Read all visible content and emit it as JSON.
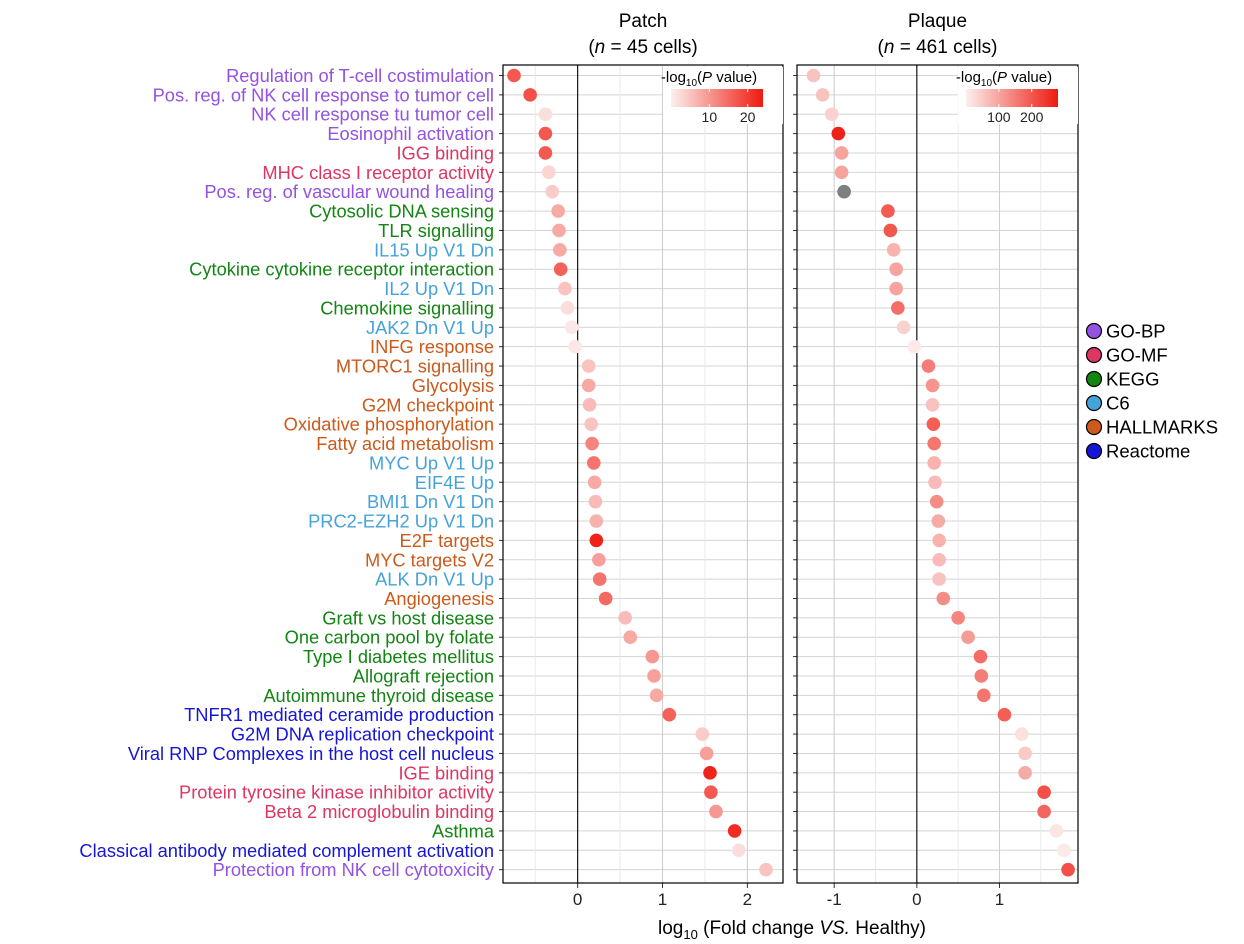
{
  "chart_data": {
    "type": "scatter",
    "xlabel": {
      "pre": "log",
      "sub": "10",
      "mid": " (Fold change ",
      "italic": "VS.",
      "post": " Healthy)"
    },
    "colorbar_title": {
      "pre": "-log",
      "sub": "10",
      "mid": "(",
      "italic": "P",
      "post": " value)"
    },
    "na_color": "#7f7f7f",
    "color_low": "#fbf0ee",
    "color_high": "#ef1a10",
    "categories": [
      {
        "name": "GO-BP",
        "color": "#9352e0"
      },
      {
        "name": "GO-MF",
        "color": "#de3561"
      },
      {
        "name": "KEGG",
        "color": "#138513"
      },
      {
        "name": "C6",
        "color": "#45a3d9"
      },
      {
        "name": "HALLMARKS",
        "color": "#cb5a1b"
      },
      {
        "name": "Reactome",
        "color": "#1616d6"
      }
    ],
    "pathways": [
      {
        "label": "Regulation of T-cell costimulation",
        "category": "GO-BP"
      },
      {
        "label": "Pos. reg. of NK cell response to tumor cell",
        "category": "GO-BP"
      },
      {
        "label": "NK cell response tu tumor cell",
        "category": "GO-BP"
      },
      {
        "label": "Eosinophil activation",
        "category": "GO-BP"
      },
      {
        "label": "IGG binding",
        "category": "GO-MF"
      },
      {
        "label": "MHC class I receptor activity",
        "category": "GO-MF"
      },
      {
        "label": "Pos. reg. of vascular wound healing",
        "category": "GO-BP"
      },
      {
        "label": "Cytosolic DNA sensing",
        "category": "KEGG"
      },
      {
        "label": "TLR signalling",
        "category": "KEGG"
      },
      {
        "label": "IL15 Up V1 Dn",
        "category": "C6"
      },
      {
        "label": "Cytokine cytokine receptor interaction",
        "category": "KEGG"
      },
      {
        "label": "IL2 Up V1 Dn",
        "category": "C6"
      },
      {
        "label": "Chemokine signalling",
        "category": "KEGG"
      },
      {
        "label": "JAK2 Dn V1 Up",
        "category": "C6"
      },
      {
        "label": "INFG response",
        "category": "HALLMARKS"
      },
      {
        "label": "MTORC1 signalling",
        "category": "HALLMARKS"
      },
      {
        "label": "Glycolysis",
        "category": "HALLMARKS"
      },
      {
        "label": "G2M checkpoint",
        "category": "HALLMARKS"
      },
      {
        "label": "Oxidative phosphorylation",
        "category": "HALLMARKS"
      },
      {
        "label": "Fatty acid metabolism",
        "category": "HALLMARKS"
      },
      {
        "label": "MYC Up V1 Up",
        "category": "C6"
      },
      {
        "label": "EIF4E Up",
        "category": "C6"
      },
      {
        "label": "BMI1 Dn V1 Dn",
        "category": "C6"
      },
      {
        "label": "PRC2-EZH2 Up V1 Dn",
        "category": "C6"
      },
      {
        "label": "E2F targets",
        "category": "HALLMARKS"
      },
      {
        "label": "MYC targets V2",
        "category": "HALLMARKS"
      },
      {
        "label": "ALK Dn V1 Up",
        "category": "C6"
      },
      {
        "label": "Angiogenesis",
        "category": "HALLMARKS"
      },
      {
        "label": "Graft vs host disease",
        "category": "KEGG"
      },
      {
        "label": "One carbon pool by folate",
        "category": "KEGG"
      },
      {
        "label": "Type I diabetes mellitus",
        "category": "KEGG"
      },
      {
        "label": "Allograft rejection",
        "category": "KEGG"
      },
      {
        "label": "Autoimmune thyroid disease",
        "category": "KEGG"
      },
      {
        "label": "TNFR1 mediated ceramide production",
        "category": "Reactome"
      },
      {
        "label": "G2M DNA replication checkpoint",
        "category": "Reactome"
      },
      {
        "label": "Viral RNP Complexes in the host cell nucleus",
        "category": "Reactome"
      },
      {
        "label": "IGE binding",
        "category": "GO-MF"
      },
      {
        "label": "Protein tyrosine kinase inhibitor activity",
        "category": "GO-MF"
      },
      {
        "label": "Beta 2 microglobulin binding",
        "category": "GO-MF"
      },
      {
        "label": "Asthma",
        "category": "KEGG"
      },
      {
        "label": "Classical antibody mediated complement activation",
        "category": "Reactome"
      },
      {
        "label": "Protection from NK cell cytotoxicity",
        "category": "GO-BP"
      }
    ],
    "panels": [
      {
        "title": "Patch",
        "subtitle": {
          "pre": "(",
          "italic": "n",
          "post": " = 45 cells)"
        },
        "xlim": [
          -0.88,
          2.42
        ],
        "xticks": [
          0,
          1,
          2
        ],
        "colorbar_ticks": [
          10,
          20
        ],
        "color_range": [
          0,
          24
        ],
        "points": [
          {
            "x": -0.75,
            "p": 17
          },
          {
            "x": -0.56,
            "p": 18
          },
          {
            "x": -0.38,
            "p": 2
          },
          {
            "x": -0.38,
            "p": 17
          },
          {
            "x": -0.38,
            "p": 17
          },
          {
            "x": -0.34,
            "p": 3
          },
          {
            "x": -0.3,
            "p": 4
          },
          {
            "x": -0.23,
            "p": 8
          },
          {
            "x": -0.22,
            "p": 8
          },
          {
            "x": -0.21,
            "p": 8
          },
          {
            "x": -0.2,
            "p": 16
          },
          {
            "x": -0.15,
            "p": 5
          },
          {
            "x": -0.12,
            "p": 2
          },
          {
            "x": -0.07,
            "p": 1
          },
          {
            "x": -0.03,
            "p": 1
          },
          {
            "x": 0.13,
            "p": 5
          },
          {
            "x": 0.13,
            "p": 8
          },
          {
            "x": 0.14,
            "p": 6
          },
          {
            "x": 0.16,
            "p": 5
          },
          {
            "x": 0.17,
            "p": 12
          },
          {
            "x": 0.19,
            "p": 14
          },
          {
            "x": 0.2,
            "p": 8
          },
          {
            "x": 0.21,
            "p": 6
          },
          {
            "x": 0.22,
            "p": 7
          },
          {
            "x": 0.22,
            "p": 23
          },
          {
            "x": 0.25,
            "p": 9
          },
          {
            "x": 0.26,
            "p": 14
          },
          {
            "x": 0.33,
            "p": 15
          },
          {
            "x": 0.56,
            "p": 6
          },
          {
            "x": 0.62,
            "p": 8
          },
          {
            "x": 0.88,
            "p": 10
          },
          {
            "x": 0.9,
            "p": 9
          },
          {
            "x": 0.93,
            "p": 8
          },
          {
            "x": 1.08,
            "p": 16
          },
          {
            "x": 1.47,
            "p": 4
          },
          {
            "x": 1.52,
            "p": 9
          },
          {
            "x": 1.56,
            "p": 23
          },
          {
            "x": 1.57,
            "p": 17
          },
          {
            "x": 1.63,
            "p": 10
          },
          {
            "x": 1.85,
            "p": 22
          },
          {
            "x": 1.9,
            "p": 2
          },
          {
            "x": 2.22,
            "p": 5
          }
        ]
      },
      {
        "title": "Plaque",
        "subtitle": {
          "pre": "(",
          "italic": "n",
          "post": " = 461 cells)"
        },
        "xlim": [
          -1.45,
          1.95
        ],
        "xticks": [
          -1,
          0,
          1
        ],
        "colorbar_ticks": [
          100,
          200
        ],
        "color_range": [
          0,
          280
        ],
        "points": [
          {
            "x": -1.25,
            "p": 60
          },
          {
            "x": -1.14,
            "p": 60
          },
          {
            "x": -1.03,
            "p": 40
          },
          {
            "x": -0.95,
            "p": 270
          },
          {
            "x": -0.91,
            "p": 100
          },
          {
            "x": -0.91,
            "p": 100
          },
          {
            "x": -0.88,
            "p": null
          },
          {
            "x": -0.35,
            "p": 195
          },
          {
            "x": -0.32,
            "p": 200
          },
          {
            "x": -0.28,
            "p": 80
          },
          {
            "x": -0.25,
            "p": 100
          },
          {
            "x": -0.25,
            "p": 100
          },
          {
            "x": -0.23,
            "p": 170
          },
          {
            "x": -0.16,
            "p": 40
          },
          {
            "x": -0.03,
            "p": 8
          },
          {
            "x": 0.14,
            "p": 150
          },
          {
            "x": 0.19,
            "p": 120
          },
          {
            "x": 0.19,
            "p": 60
          },
          {
            "x": 0.2,
            "p": 190
          },
          {
            "x": 0.21,
            "p": 160
          },
          {
            "x": 0.21,
            "p": 80
          },
          {
            "x": 0.22,
            "p": 70
          },
          {
            "x": 0.24,
            "p": 130
          },
          {
            "x": 0.26,
            "p": 90
          },
          {
            "x": 0.27,
            "p": 80
          },
          {
            "x": 0.27,
            "p": 70
          },
          {
            "x": 0.27,
            "p": 60
          },
          {
            "x": 0.32,
            "p": 130
          },
          {
            "x": 0.5,
            "p": 140
          },
          {
            "x": 0.62,
            "p": 110
          },
          {
            "x": 0.77,
            "p": 170
          },
          {
            "x": 0.78,
            "p": 150
          },
          {
            "x": 0.81,
            "p": 160
          },
          {
            "x": 1.06,
            "p": 190
          },
          {
            "x": 1.27,
            "p": 20
          },
          {
            "x": 1.31,
            "p": 50
          },
          {
            "x": 1.31,
            "p": 90
          },
          {
            "x": 1.54,
            "p": 210
          },
          {
            "x": 1.54,
            "p": 180
          },
          {
            "x": 1.69,
            "p": 15
          },
          {
            "x": 1.78,
            "p": 8
          },
          {
            "x": 1.83,
            "p": 210
          }
        ]
      }
    ]
  }
}
